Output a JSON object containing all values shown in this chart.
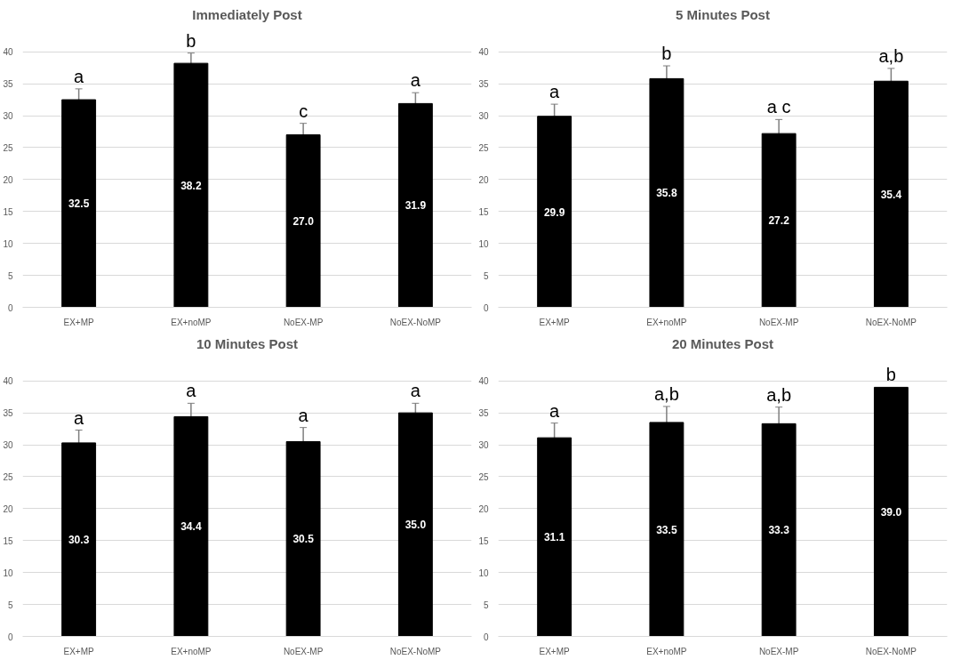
{
  "chart_data": [
    {
      "type": "bar",
      "title": "Immediately Post",
      "categories": [
        "EX+MP",
        "EX+noMP",
        "NoEX-MP",
        "NoEX-NoMP"
      ],
      "values": [
        32.5,
        38.2,
        27.0,
        31.9
      ],
      "value_labels": [
        "32.5",
        "38.2",
        "27.0",
        "31.9"
      ],
      "errors": [
        1.7,
        1.6,
        1.8,
        1.7
      ],
      "color": "#000000",
      "ylim": [
        0,
        40
      ],
      "yticks": [
        0,
        5,
        10,
        15,
        20,
        25,
        30,
        35,
        40
      ],
      "grid": "y",
      "annotations": [
        {
          "text": "a",
          "x": "EX+MP",
          "y": 34.2
        },
        {
          "text": "b",
          "x": "EX+noMP",
          "y": 39.8
        },
        {
          "text": "c",
          "x": "NoEX-MP",
          "y": 28.8
        },
        {
          "text": "a",
          "x": "NoEX-NoMP",
          "y": 33.6
        }
      ]
    },
    {
      "type": "bar",
      "title": "5 Minutes Post",
      "categories": [
        "EX+MP",
        "EX+noMP",
        "NoEX-MP",
        "NoEX-NoMP"
      ],
      "values": [
        29.9,
        35.8,
        27.2,
        35.4
      ],
      "value_labels": [
        "29.9",
        "35.8",
        "27.2",
        "35.4"
      ],
      "errors": [
        1.9,
        2.0,
        2.2,
        2.0
      ],
      "color": "#000000",
      "ylim": [
        0,
        40
      ],
      "yticks": [
        0,
        5,
        10,
        15,
        20,
        25,
        30,
        35,
        40
      ],
      "grid": "y",
      "annotations": [
        {
          "text": "a",
          "x": "EX+MP",
          "y": 31.8
        },
        {
          "text": "b",
          "x": "EX+noMP",
          "y": 37.8
        },
        {
          "text": "a c",
          "x": "NoEX-MP",
          "y": 29.4
        },
        {
          "text": "a,b",
          "x": "NoEX-NoMP",
          "y": 37.4
        }
      ]
    },
    {
      "type": "bar",
      "title": "10 Minutes Post",
      "categories": [
        "EX+MP",
        "EX+noMP",
        "NoEX-MP",
        "NoEX-NoMP"
      ],
      "values": [
        30.3,
        34.4,
        30.5,
        35.0
      ],
      "value_labels": [
        "30.3",
        "34.4",
        "30.5",
        "35.0"
      ],
      "errors": [
        2.0,
        2.1,
        2.2,
        1.5
      ],
      "color": "#000000",
      "ylim": [
        0,
        40
      ],
      "yticks": [
        0,
        5,
        10,
        15,
        20,
        25,
        30,
        35,
        40
      ],
      "grid": "y",
      "annotations": [
        {
          "text": "a",
          "x": "EX+MP",
          "y": 32.3
        },
        {
          "text": "a",
          "x": "EX+noMP",
          "y": 36.5
        },
        {
          "text": "a",
          "x": "NoEX-MP",
          "y": 32.7
        },
        {
          "text": "a",
          "x": "NoEX-NoMP",
          "y": 36.5
        }
      ]
    },
    {
      "type": "bar",
      "title": "20 Minutes Post",
      "categories": [
        "EX+MP",
        "EX+noMP",
        "NoEX-MP",
        "NoEX-NoMP"
      ],
      "values": [
        31.1,
        33.5,
        33.3,
        39.0
      ],
      "value_labels": [
        "31.1",
        "33.5",
        "33.3",
        "39.0"
      ],
      "errors": [
        2.3,
        2.5,
        2.6,
        null
      ],
      "color": "#000000",
      "ylim": [
        0,
        40
      ],
      "yticks": [
        0,
        5,
        10,
        15,
        20,
        25,
        30,
        35,
        40
      ],
      "grid": "y",
      "annotations": [
        {
          "text": "a",
          "x": "EX+MP",
          "y": 33.4
        },
        {
          "text": "a,b",
          "x": "EX+noMP",
          "y": 36.0
        },
        {
          "text": "a,b",
          "x": "NoEX-MP",
          "y": 35.9
        },
        {
          "text": "b",
          "x": "NoEX-NoMP",
          "y": 39.0
        }
      ]
    }
  ]
}
